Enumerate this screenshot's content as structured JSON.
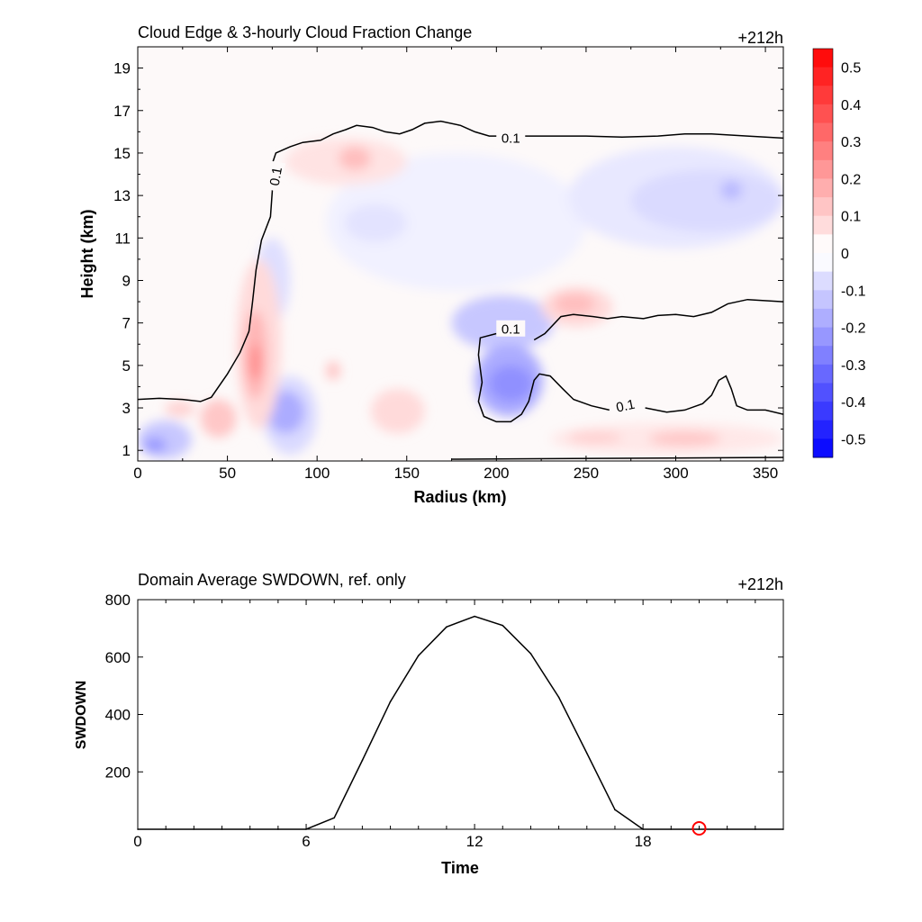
{
  "chart_data": [
    {
      "type": "heatmap",
      "title": "Cloud Edge & 3-hourly Cloud Fraction Change",
      "time_label": "+212h",
      "xlabel": "Radius (km)",
      "ylabel": "Height (km)",
      "xlim": [
        0,
        360
      ],
      "ylim": [
        0.5,
        20
      ],
      "xticks": [
        0,
        50,
        100,
        150,
        200,
        250,
        300,
        350
      ],
      "yticks": [
        1,
        3,
        5,
        7,
        9,
        11,
        13,
        15,
        17,
        19
      ],
      "grid": false,
      "colorbar": {
        "placement": "right",
        "min": -0.55,
        "max": 0.55,
        "ticks": [
          0.5,
          0.4,
          0.3,
          0.2,
          0.1,
          0,
          -0.1,
          -0.2,
          -0.3,
          -0.4,
          -0.5
        ],
        "tick_labels": [
          "0.5",
          "0.4",
          "0.3",
          "0.2",
          "0.1",
          "0",
          "-0.1",
          "-0.2",
          "-0.3",
          "-0.4",
          "-0.5"
        ],
        "neg_color": "#0000ff",
        "pos_color": "#ff0000",
        "mid_color": "#ffffff"
      },
      "contour_level": "0.1",
      "contour_label_positions": [
        {
          "x": 208,
          "y": 15.7
        },
        {
          "x": 77,
          "y": 13.9
        },
        {
          "x": 208,
          "y": 6.7
        },
        {
          "x": 272,
          "y": 3.1
        }
      ],
      "contours": [
        [
          [
            0,
            3.4
          ],
          [
            12,
            3.45
          ],
          [
            25,
            3.4
          ],
          [
            35,
            3.3
          ],
          [
            41,
            3.5
          ],
          [
            50,
            4.6
          ],
          [
            57,
            5.6
          ],
          [
            62,
            6.6
          ],
          [
            64,
            8.0
          ],
          [
            66,
            9.5
          ],
          [
            69,
            10.9
          ],
          [
            74,
            12.0
          ],
          [
            75,
            13.2
          ],
          [
            75,
            14.5
          ],
          [
            77,
            15.0
          ],
          [
            85,
            15.3
          ],
          [
            92,
            15.5
          ],
          [
            102,
            15.6
          ],
          [
            109,
            15.9
          ],
          [
            116,
            16.1
          ],
          [
            122,
            16.3
          ],
          [
            131,
            16.2
          ],
          [
            138,
            16.0
          ],
          [
            146,
            15.9
          ],
          [
            153,
            16.1
          ],
          [
            160,
            16.4
          ],
          [
            169,
            16.5
          ],
          [
            180,
            16.3
          ],
          [
            188,
            16.0
          ],
          [
            196,
            15.8
          ],
          [
            207,
            15.8
          ],
          [
            230,
            15.8
          ],
          [
            250,
            15.8
          ],
          [
            270,
            15.75
          ],
          [
            290,
            15.8
          ],
          [
            305,
            15.9
          ],
          [
            320,
            15.9
          ],
          [
            340,
            15.8
          ],
          [
            360,
            15.7
          ]
        ],
        [
          [
            200,
            6.5
          ],
          [
            191,
            6.3
          ],
          [
            190,
            5.5
          ],
          [
            192,
            4.2
          ],
          [
            190,
            3.3
          ],
          [
            193,
            2.6
          ],
          [
            200,
            2.35
          ],
          [
            208,
            2.35
          ],
          [
            214,
            2.7
          ],
          [
            218,
            3.3
          ],
          [
            221,
            4.3
          ],
          [
            224,
            4.6
          ],
          [
            230,
            4.5
          ],
          [
            237,
            3.9
          ],
          [
            243,
            3.4
          ],
          [
            253,
            3.1
          ],
          [
            263,
            2.9
          ]
        ],
        [
          [
            283,
            3.0
          ],
          [
            295,
            2.8
          ],
          [
            305,
            2.9
          ],
          [
            315,
            3.2
          ],
          [
            320,
            3.6
          ],
          [
            324,
            4.3
          ],
          [
            328,
            4.5
          ],
          [
            331,
            3.9
          ],
          [
            334,
            3.1
          ],
          [
            340,
            2.9
          ],
          [
            350,
            2.9
          ],
          [
            360,
            2.7
          ]
        ],
        [
          [
            221,
            6.2
          ],
          [
            227,
            6.5
          ],
          [
            236,
            7.3
          ],
          [
            243,
            7.4
          ],
          [
            254,
            7.3
          ],
          [
            262,
            7.2
          ],
          [
            270,
            7.3
          ],
          [
            282,
            7.2
          ],
          [
            290,
            7.35
          ],
          [
            300,
            7.4
          ],
          [
            310,
            7.3
          ],
          [
            320,
            7.5
          ],
          [
            329,
            7.9
          ],
          [
            340,
            8.1
          ],
          [
            360,
            8.0
          ]
        ]
      ],
      "cells": [
        {
          "x": [
            105,
            250
          ],
          "y": [
            8.5,
            15.0
          ],
          "v": -0.03
        },
        {
          "x": [
            240,
            360
          ],
          "y": [
            10.5,
            15.3
          ],
          "v": -0.05
        },
        {
          "x": [
            275,
            360
          ],
          "y": [
            11.3,
            14.2
          ],
          "v": -0.08
        },
        {
          "x": [
            325,
            337
          ],
          "y": [
            12.8,
            13.7
          ],
          "v": -0.15
        },
        {
          "x": [
            175,
            232
          ],
          "y": [
            5.7,
            8.3
          ],
          "v": -0.12
        },
        {
          "x": [
            188,
            226
          ],
          "y": [
            2.6,
            6.0
          ],
          "v": -0.18
        },
        {
          "x": [
            196,
            220
          ],
          "y": [
            3.3,
            5.0
          ],
          "v": -0.24
        },
        {
          "x": [
            65,
            85
          ],
          "y": [
            7.0,
            11.0
          ],
          "v": -0.07
        },
        {
          "x": [
            70,
            100
          ],
          "y": [
            0.8,
            4.5
          ],
          "v": -0.08
        },
        {
          "x": [
            72,
            93
          ],
          "y": [
            1.8,
            3.8
          ],
          "v": -0.18
        },
        {
          "x": [
            0,
            30
          ],
          "y": [
            0.6,
            2.4
          ],
          "v": -0.12
        },
        {
          "x": [
            3,
            16
          ],
          "y": [
            0.9,
            1.6
          ],
          "v": -0.22
        },
        {
          "x": [
            115,
            150
          ],
          "y": [
            10.8,
            12.6
          ],
          "v": -0.06
        },
        {
          "x": [
            82,
            150
          ],
          "y": [
            13.5,
            15.7
          ],
          "v": 0.06
        },
        {
          "x": [
            112,
            130
          ],
          "y": [
            14.2,
            15.3
          ],
          "v": 0.14
        },
        {
          "x": [
            55,
            80
          ],
          "y": [
            2.0,
            10.0
          ],
          "v": 0.08
        },
        {
          "x": [
            59,
            72
          ],
          "y": [
            3.4,
            7.6
          ],
          "v": 0.16
        },
        {
          "x": [
            62,
            69
          ],
          "y": [
            4.3,
            6.0
          ],
          "v": 0.24
        },
        {
          "x": [
            35,
            55
          ],
          "y": [
            1.6,
            3.4
          ],
          "v": 0.12
        },
        {
          "x": [
            15,
            32
          ],
          "y": [
            2.6,
            3.3
          ],
          "v": 0.1
        },
        {
          "x": [
            130,
            160
          ],
          "y": [
            1.8,
            3.9
          ],
          "v": 0.08
        },
        {
          "x": [
            105,
            113
          ],
          "y": [
            4.3,
            5.2
          ],
          "v": 0.12
        },
        {
          "x": [
            225,
            265
          ],
          "y": [
            6.8,
            8.7
          ],
          "v": 0.08
        },
        {
          "x": [
            232,
            255
          ],
          "y": [
            7.4,
            8.4
          ],
          "v": 0.14
        },
        {
          "x": [
            230,
            360
          ],
          "y": [
            0.8,
            2.3
          ],
          "v": 0.05
        },
        {
          "x": [
            285,
            325
          ],
          "y": [
            1.2,
            1.9
          ],
          "v": 0.12
        },
        {
          "x": [
            240,
            270
          ],
          "y": [
            1.3,
            1.9
          ],
          "v": 0.1
        }
      ]
    },
    {
      "type": "line",
      "title": "Domain Average SWDOWN, ref. only",
      "time_label": "+212h",
      "xlabel": "Time",
      "ylabel": "SWDOWN",
      "xlim": [
        0,
        23
      ],
      "ylim": [
        0,
        800
      ],
      "xticks": [
        0,
        6,
        12,
        18
      ],
      "yticks": [
        200,
        400,
        600,
        800
      ],
      "grid": false,
      "series": [
        {
          "color": "#000000",
          "x": [
            0,
            1,
            2,
            3,
            4,
            5,
            6,
            7,
            8,
            9,
            10,
            11,
            12,
            13,
            14,
            15,
            16,
            17,
            18,
            19,
            20,
            21,
            22,
            23
          ],
          "y": [
            0,
            0,
            0,
            0,
            0,
            0,
            0,
            40,
            240,
            445,
            605,
            705,
            742,
            710,
            612,
            460,
            265,
            68,
            0,
            0,
            0,
            0,
            0,
            0
          ]
        }
      ],
      "marker": {
        "x": 20,
        "y": 0,
        "color": "#ff0000"
      }
    }
  ]
}
